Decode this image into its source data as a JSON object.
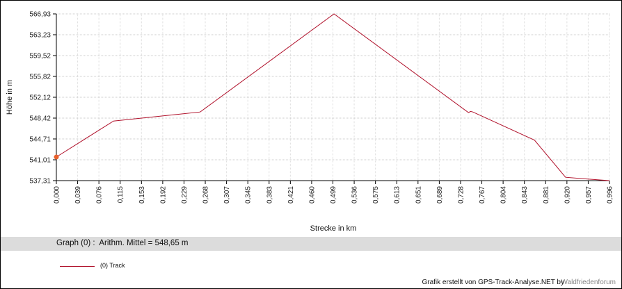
{
  "chart_data": {
    "type": "line",
    "xlabel": "Strecke  in  km",
    "ylabel": "Höhe  in  m",
    "xlim": [
      0,
      0.996
    ],
    "ylim": [
      537.31,
      566.93
    ],
    "grid": true,
    "x_ticks": [
      "0,000",
      "0,039",
      "0,076",
      "0,115",
      "0,153",
      "0,192",
      "0,229",
      "0,268",
      "0,307",
      "0,345",
      "0,383",
      "0,421",
      "0,460",
      "0,499",
      "0,536",
      "0,575",
      "0,613",
      "0,651",
      "0,689",
      "0,728",
      "0,767",
      "0,804",
      "0,843",
      "0,881",
      "0,920",
      "0,957",
      "0,996"
    ],
    "y_ticks": [
      "566,93",
      "563,23",
      "559,52",
      "555,82",
      "552,12",
      "548,42",
      "544,71",
      "541,01",
      "537,31"
    ],
    "series": [
      {
        "name": "(0) Track",
        "color": "#b0102a",
        "x": [
          0.0,
          0.103,
          0.259,
          0.5,
          0.742,
          0.746,
          0.75,
          0.861,
          0.917,
          0.957,
          0.996
        ],
        "y": [
          541.5,
          547.9,
          549.5,
          566.93,
          549.4,
          549.6,
          549.5,
          544.5,
          537.9,
          537.6,
          537.31
        ]
      }
    ],
    "start_marker_color": "#e8602c",
    "legend_placement": "bottom-left"
  },
  "stats": {
    "text": "Graph (0) :  Arithm. Mittel = 548,65 m"
  },
  "legend": {
    "label": "(0) Track"
  },
  "footer": {
    "credit": "Grafik erstellt von GPS-Track-Analyse.NET by",
    "watermark": "Waldfriedenforum"
  }
}
